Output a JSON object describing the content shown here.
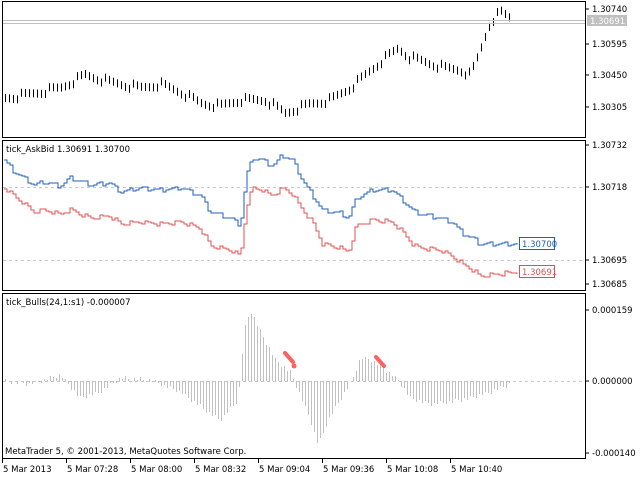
{
  "footer_text": "MetaTrader 5, © 2001-2013, MetaQuotes Software Corp.",
  "price_pane": {
    "axis_labels": [
      "1.30740",
      "1.30595",
      "1.30450",
      "1.30305"
    ],
    "current_price_label": "1.30691",
    "colors": {
      "bar": "#000000",
      "price_line": "#c0c0c0",
      "tag": "#c0c0c0"
    }
  },
  "askbid_pane": {
    "title": "tick_AskBid 1.30691 1.30700",
    "axis_labels": [
      "1.30732",
      "1.30718",
      "1.30695",
      "1.30685"
    ],
    "ask_tag": "1.30700",
    "bid_tag": "1.30691",
    "colors": {
      "ask": "#1f5fbf",
      "bid": "#e05050",
      "level": "#c8c8c8"
    }
  },
  "bulls_pane": {
    "title": "tick_Bulls(24,1:s1) -0.000007",
    "axis_labels": [
      "0.000159",
      "0.000000",
      "-0.000140"
    ],
    "colors": {
      "histogram": "#c0c0c0",
      "signal": "#ff6060"
    }
  },
  "time_axis": [
    "5 Mar 2013",
    "5 Mar 07:28",
    "5 Mar 08:00",
    "5 Mar 08:32",
    "5 Mar 09:04",
    "5 Mar 09:36",
    "5 Mar 10:08",
    "5 Mar 10:40"
  ]
}
